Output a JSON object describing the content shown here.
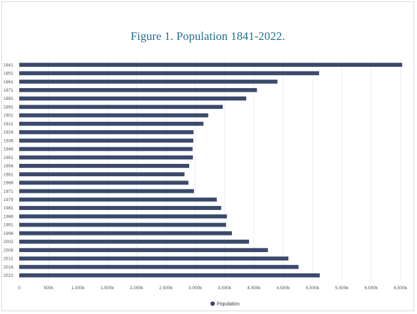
{
  "chart_data": {
    "type": "bar",
    "orientation": "horizontal",
    "title": "Figure 1. Population 1841-2022.",
    "categories": [
      "1841",
      "1851",
      "1861",
      "1871",
      "1881",
      "1891",
      "1901",
      "1911",
      "1926",
      "1936",
      "1946",
      "1951",
      "1956",
      "1961",
      "1966",
      "1971",
      "1979",
      "1981",
      "1986",
      "1991",
      "1996",
      "2002",
      "2006",
      "2011",
      "2016",
      "2022"
    ],
    "series": [
      {
        "name": "Population",
        "color": "#3b4a6b",
        "values": [
          6529,
          5112,
          4402,
          4053,
          3870,
          3469,
          3222,
          3140,
          2972,
          2968,
          2955,
          2961,
          2898,
          2818,
          2884,
          2978,
          3368,
          3443,
          3541,
          3526,
          3626,
          3918,
          4240,
          4589,
          4762,
          5124
        ]
      }
    ],
    "xlim": [
      0,
      6500
    ],
    "xticks": [
      "0",
      "500k",
      "1,000k",
      "1,500k",
      "2,000k",
      "2,500k",
      "3,000k",
      "3,500k",
      "4,000k",
      "4,500k",
      "5,000k",
      "5,500k",
      "6,000k",
      "6,500k"
    ],
    "grid": true,
    "legend": {
      "position": "bottom",
      "entries": [
        "Population"
      ]
    }
  }
}
